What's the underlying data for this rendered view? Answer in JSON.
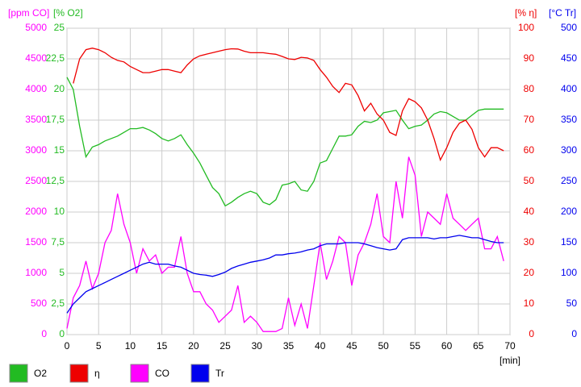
{
  "chart_data": {
    "type": "line",
    "xlabel": "[min]",
    "x": [
      0,
      1,
      2,
      3,
      4,
      5,
      6,
      7,
      8,
      9,
      10,
      11,
      12,
      13,
      14,
      15,
      16,
      17,
      18,
      19,
      20,
      21,
      22,
      23,
      24,
      25,
      26,
      27,
      28,
      29,
      30,
      31,
      32,
      33,
      34,
      35,
      36,
      37,
      38,
      39,
      40,
      41,
      42,
      43,
      44,
      45,
      46,
      47,
      48,
      49,
      50,
      51,
      52,
      53,
      54,
      55,
      56,
      57,
      58,
      59,
      60,
      61,
      62,
      63,
      64,
      65,
      66,
      67,
      68,
      69
    ],
    "xlim": [
      0,
      70
    ],
    "xticks": [
      0,
      5,
      10,
      15,
      20,
      25,
      30,
      35,
      40,
      45,
      50,
      55,
      60,
      65,
      70
    ],
    "ylabel": "[ppm CO]",
    "ycolor": "#ff00ff",
    "ylim": [
      0,
      5000
    ],
    "yticks": [
      0,
      500,
      1000,
      1500,
      2000,
      2500,
      3000,
      3500,
      4000,
      4500,
      5000
    ],
    "y2label": "[% O2]",
    "y2color": "#22bb22",
    "y2lim": [
      0,
      25
    ],
    "y2ticks": [
      0,
      {
        "value": 2.5,
        "label": "2,5"
      },
      5,
      {
        "value": 7.5,
        "label": "7,5"
      },
      10,
      {
        "value": 12.5,
        "label": "12,5"
      },
      15,
      {
        "value": 17.5,
        "label": "17,5"
      },
      20,
      {
        "value": 22.5,
        "label": "22,5"
      },
      25
    ],
    "y3label": "[% η]",
    "y3color": "#ee0000",
    "y3lim": [
      0,
      100
    ],
    "y3ticks": [
      0,
      10,
      20,
      30,
      40,
      50,
      60,
      70,
      80,
      90,
      100
    ],
    "y4label": "[°C Tr]",
    "y4color": "#0000ee",
    "y4lim": [
      0,
      500
    ],
    "y4ticks": [
      0,
      50,
      100,
      150,
      200,
      250,
      300,
      350,
      400,
      450,
      500
    ],
    "grid": true,
    "series": [
      {
        "name": "O2",
        "color": "#22bb22",
        "axis": "y2",
        "values": [
          21,
          20,
          17,
          14.5,
          15.3,
          15.5,
          15.8,
          16,
          16.2,
          16.5,
          16.8,
          16.8,
          16.9,
          16.7,
          16.4,
          16,
          15.8,
          16,
          16.3,
          15.5,
          14.8,
          14,
          13,
          12,
          11.5,
          10.5,
          10.8,
          11.2,
          11.5,
          11.7,
          11.5,
          10.8,
          10.6,
          11,
          12.2,
          12.3,
          12.5,
          11.8,
          11.7,
          12.5,
          14,
          14.2,
          15.2,
          16.2,
          16.2,
          16.3,
          17,
          17.4,
          17.3,
          17.5,
          18.1,
          18.2,
          18.3,
          17.5,
          16.8,
          17,
          17.1,
          17.5,
          18,
          18.2,
          18.1,
          17.8,
          17.5,
          17.5,
          17.9,
          18.3,
          18.4,
          18.4,
          18.4,
          18.4
        ]
      },
      {
        "name": "η",
        "color": "#ee0000",
        "axis": "y3",
        "values": [
          null,
          82,
          90,
          93,
          93.5,
          93,
          92,
          90.5,
          89.5,
          89,
          87.5,
          86.5,
          85.5,
          85.5,
          86,
          86.5,
          86.5,
          86,
          85.5,
          88,
          90,
          91,
          91.5,
          92,
          92.5,
          93,
          93.3,
          93.2,
          92.5,
          92,
          92,
          92,
          91.7,
          91.5,
          90.8,
          90,
          89.8,
          90.5,
          90.3,
          89.5,
          86.5,
          84,
          81,
          79,
          82,
          81.5,
          78,
          73,
          75.5,
          72,
          70,
          66,
          65,
          73,
          77,
          76,
          74,
          70,
          64,
          57,
          61,
          66,
          69,
          70,
          67,
          61,
          58,
          61,
          61,
          60
        ]
      },
      {
        "name": "CO",
        "color": "#ff00ff",
        "axis": "y",
        "values": [
          100,
          600,
          800,
          1200,
          750,
          1000,
          1500,
          1700,
          2300,
          1800,
          1500,
          1000,
          1400,
          1200,
          1300,
          1000,
          1100,
          1100,
          1600,
          1000,
          700,
          700,
          500,
          400,
          200,
          300,
          400,
          800,
          200,
          300,
          200,
          50,
          50,
          50,
          100,
          600,
          150,
          500,
          100,
          800,
          1500,
          900,
          1200,
          1600,
          1500,
          800,
          1300,
          1500,
          1800,
          2300,
          1600,
          1500,
          2500,
          1900,
          2900,
          2600,
          1600,
          2000,
          1900,
          1800,
          2300,
          1900,
          1800,
          1700,
          1800,
          1900,
          1400,
          1400,
          1600,
          1200
        ]
      },
      {
        "name": "Tr",
        "color": "#0000ee",
        "axis": "y4",
        "values": [
          35,
          50,
          60,
          70,
          75,
          80,
          85,
          90,
          95,
          100,
          105,
          110,
          115,
          118,
          115,
          115,
          115,
          112,
          110,
          105,
          100,
          98,
          97,
          95,
          98,
          102,
          108,
          112,
          115,
          118,
          120,
          122,
          125,
          130,
          130,
          132,
          133,
          135,
          138,
          140,
          145,
          148,
          148,
          148,
          150,
          150,
          150,
          148,
          145,
          142,
          140,
          138,
          140,
          155,
          158,
          158,
          158,
          158,
          156,
          158,
          158,
          160,
          162,
          160,
          158,
          158,
          155,
          152,
          150,
          150
        ]
      }
    ]
  }
}
